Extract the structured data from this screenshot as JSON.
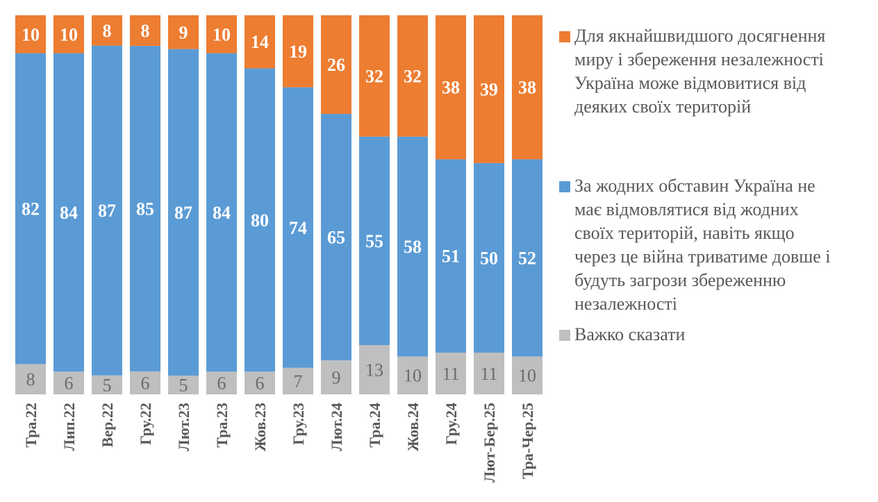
{
  "chart_data": {
    "type": "bar",
    "stacked": true,
    "percent_stacked": true,
    "title": "",
    "xlabel": "",
    "ylabel": "",
    "ylim": [
      0,
      100
    ],
    "grid": false,
    "legend_position": "right",
    "categories": [
      "Тра.22",
      "Лип.22",
      "Вер.22",
      "Гру.22",
      "Лют.23",
      "Тра.23",
      "Жов.23",
      "Гру.23",
      "Лют.24",
      "Тра.24",
      "Жов.24",
      "Гру.24",
      "Лют-Бер.25",
      "Тра-Чер.25"
    ],
    "series": [
      {
        "name": "Важко сказати",
        "color": "#BFBFBF",
        "label_color": "#6B6B6B",
        "label_bold": false,
        "values": [
          8,
          6,
          5,
          6,
          5,
          6,
          6,
          7,
          9,
          13,
          10,
          11,
          11,
          10
        ]
      },
      {
        "name": "За жодних обставин Україна не має відмовлятися від жодних своїх територій, навіть якщо через це війна триватиме довше і будуть загрози збереженню незалежності",
        "color": "#5B9BD5",
        "label_color": "#FFFFFF",
        "label_bold": true,
        "values": [
          82,
          84,
          87,
          85,
          87,
          84,
          80,
          74,
          65,
          55,
          58,
          51,
          50,
          52
        ]
      },
      {
        "name": "Для якнайшвидшого досягнення миру і збереження незалежності Україна може відмовитися від деяких своїх територій",
        "color": "#ED7D31",
        "label_color": "#FFFFFF",
        "label_bold": true,
        "values": [
          10,
          10,
          8,
          8,
          9,
          10,
          14,
          19,
          26,
          32,
          32,
          38,
          39,
          38
        ]
      }
    ]
  },
  "legend": {
    "items": [
      {
        "color": "#ED7D31",
        "lines": [
          "Для якнайшвидшого досягнення",
          "миру і збереження незалежності",
          "Україна може відмовитися від",
          "деяких своїх територій"
        ]
      },
      {
        "color": "#5B9BD5",
        "lines": [
          "За жодних обставин Україна не",
          "має відмовлятися від жодних",
          "своїх територій, навіть якщо",
          "через це війна триватиме довше і",
          "будуть загрози збереженню",
          "незалежності"
        ]
      },
      {
        "color": "#BFBFBF",
        "lines": [
          "Важко сказати"
        ]
      }
    ]
  }
}
